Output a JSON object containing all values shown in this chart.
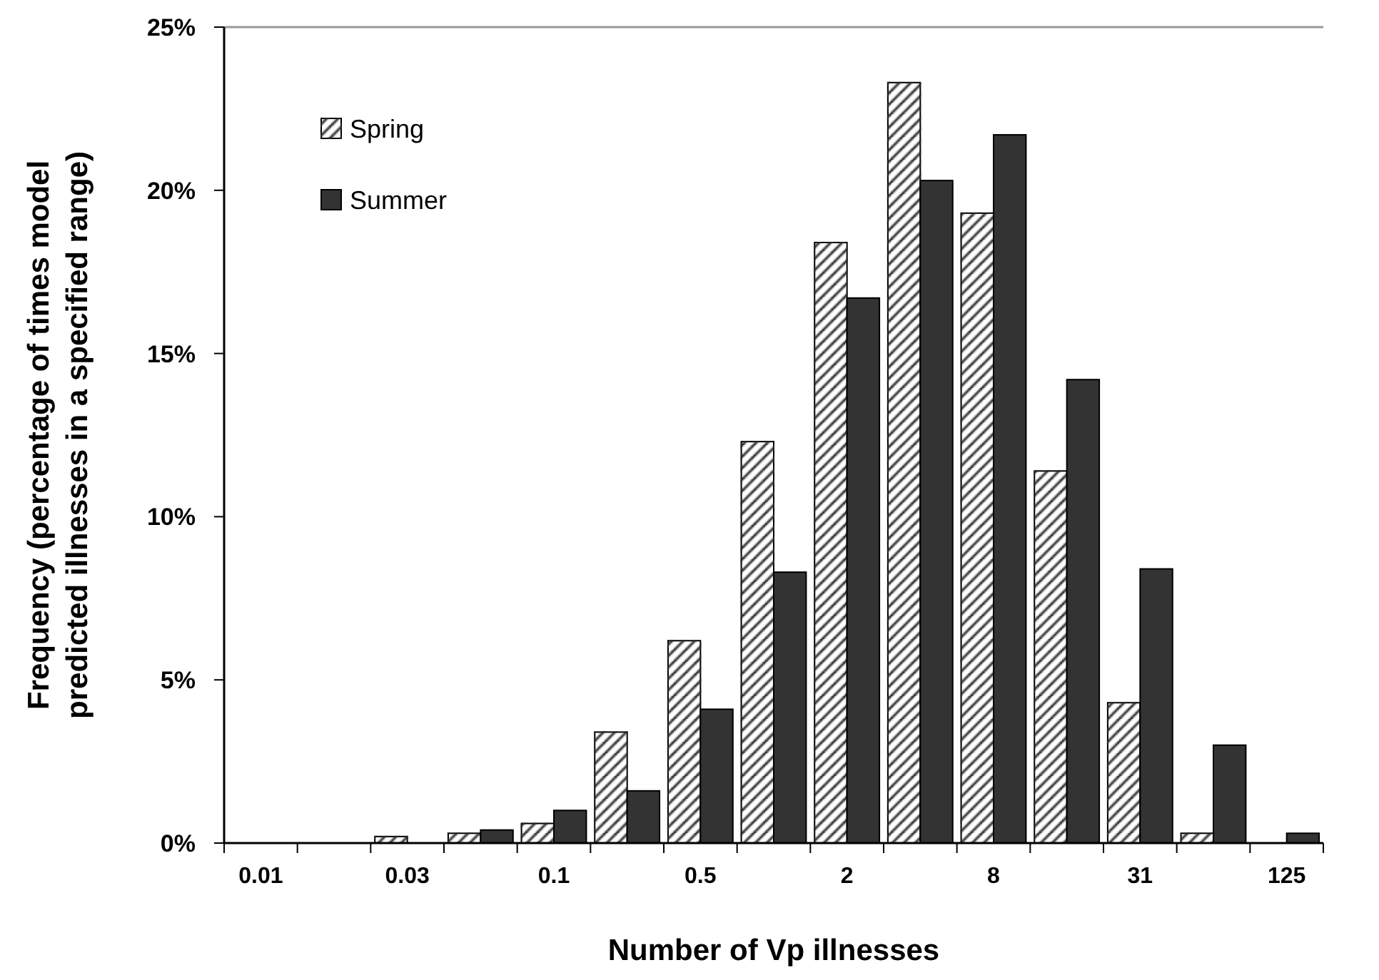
{
  "chart_data": {
    "type": "bar",
    "xlabel": "Number of Vp illnesses",
    "ylabel": "Frequency (percentage of times model predicted illnesses in a specified range)",
    "categories": [
      "0.01",
      null,
      "0.03",
      null,
      "0.1",
      null,
      "0.5",
      null,
      "2",
      null,
      "8",
      null,
      "31",
      null,
      "125"
    ],
    "series": [
      {
        "name": "Spring",
        "color": "#ffffff",
        "values": [
          0,
          0,
          0.2,
          0.3,
          0.6,
          3.4,
          6.2,
          12.3,
          18.4,
          23.3,
          19.3,
          11.4,
          4.3,
          0.3,
          0
        ]
      },
      {
        "name": "Summer",
        "color": "#333333",
        "values": [
          0,
          0,
          0,
          0.4,
          1.0,
          1.6,
          4.1,
          8.3,
          16.7,
          20.3,
          21.7,
          14.2,
          8.4,
          3.0,
          0.3
        ]
      }
    ],
    "ylim": [
      0,
      25
    ],
    "yticks": [
      {
        "value": 0,
        "label": "0%"
      },
      {
        "value": 5,
        "label": "5%"
      },
      {
        "value": 10,
        "label": "10%"
      },
      {
        "value": 15,
        "label": "15%"
      },
      {
        "value": 20,
        "label": "20%"
      },
      {
        "value": 25,
        "label": "25%"
      }
    ],
    "legend": "top left",
    "grid": false
  }
}
